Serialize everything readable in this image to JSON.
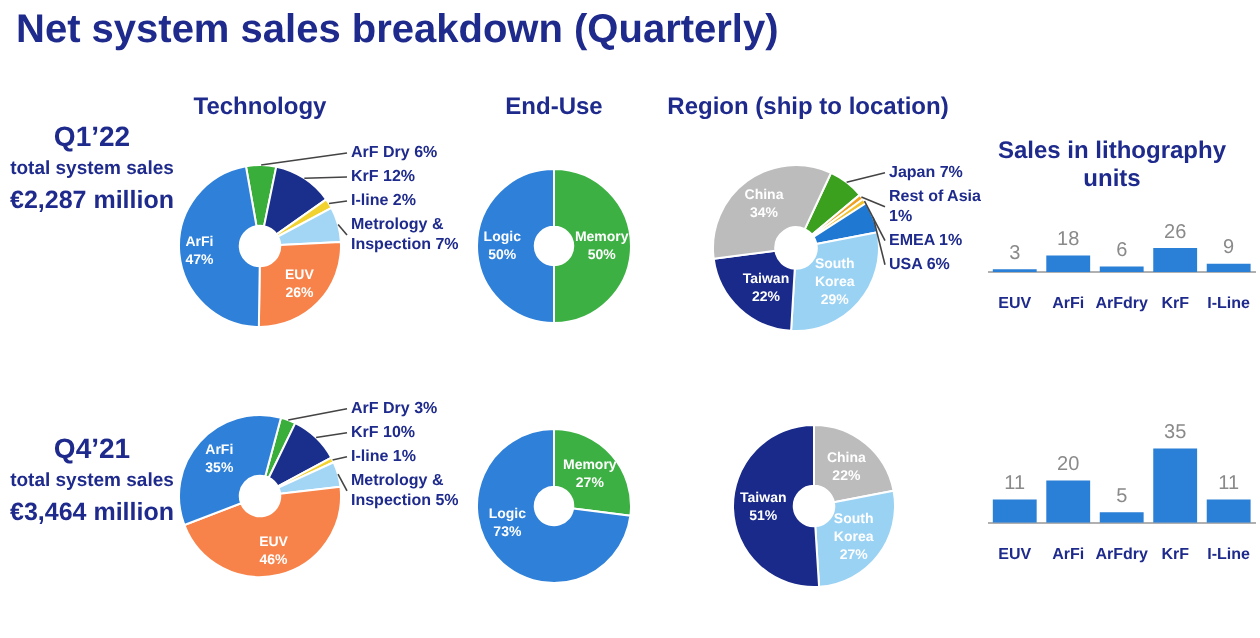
{
  "chart_data": [
    {
      "type": "other",
      "title": "Net system sales breakdown (Quarterly)"
    },
    {
      "type": "other",
      "title": "Q1’22",
      "annotations": [
        "total system sales",
        "€2,287 million"
      ]
    },
    {
      "type": "donut",
      "title": "Technology",
      "categories": [
        "ArF Dry",
        "KrF",
        "I-line",
        "Metrology & Inspection",
        "EUV",
        "ArFi"
      ],
      "values": [
        6,
        12,
        2,
        7,
        26,
        47
      ],
      "colors": [
        "#3aae3a",
        "#1a2e8c",
        "#f2d22e",
        "#a3d6f5",
        "#f8834a",
        "#2f80d8"
      ],
      "value_labels": [
        "6%",
        "12%",
        "2%",
        "7%",
        "26%",
        "47%"
      ]
    },
    {
      "type": "donut",
      "title": "End-Use",
      "categories": [
        "Memory",
        "Logic"
      ],
      "values": [
        50,
        50
      ],
      "colors": [
        "#3cb043",
        "#2f80d8"
      ],
      "value_labels": [
        "50%",
        "50%"
      ]
    },
    {
      "type": "donut",
      "title": "Region (ship to location)",
      "categories": [
        "Japan",
        "Rest of Asia",
        "EMEA",
        "USA",
        "South Korea",
        "Taiwan",
        "China"
      ],
      "values": [
        7,
        1,
        1,
        6,
        29,
        22,
        34
      ],
      "colors": [
        "#3aa01e",
        "#f0a020",
        "#f2c12e",
        "#1f78d1",
        "#9ad2f4",
        "#1a2a8a",
        "#bcbcbc"
      ],
      "value_labels": [
        "7%",
        "1%",
        "1%",
        "6%",
        "29%",
        "22%",
        "34%"
      ]
    },
    {
      "type": "bar",
      "title": "Sales in lithography units",
      "categories": [
        "EUV",
        "ArFi",
        "ArFdry",
        "KrF",
        "I-Line"
      ],
      "values": [
        3,
        18,
        6,
        26,
        9
      ],
      "color": "#2a7fd6",
      "data_labels": true
    },
    {
      "type": "other",
      "title": "Q4’21",
      "annotations": [
        "total system sales",
        "€3,464 million"
      ]
    },
    {
      "type": "donut",
      "categories": [
        "ArF Dry",
        "KrF",
        "I-line",
        "Metrology & Inspection",
        "EUV",
        "ArFi"
      ],
      "values": [
        3,
        10,
        1,
        5,
        46,
        35
      ],
      "colors": [
        "#3aae3a",
        "#1a2e8c",
        "#f2d22e",
        "#a3d6f5",
        "#f8834a",
        "#2f80d8"
      ],
      "value_labels": [
        "3%",
        "10%",
        "1%",
        "5%",
        "46%",
        "35%"
      ]
    },
    {
      "type": "donut",
      "categories": [
        "Memory",
        "Logic"
      ],
      "values": [
        27,
        73
      ],
      "colors": [
        "#3cb043",
        "#2f80d8"
      ],
      "value_labels": [
        "27%",
        "73%"
      ]
    },
    {
      "type": "donut",
      "categories": [
        "China",
        "South Korea",
        "Taiwan"
      ],
      "values": [
        22,
        27,
        51
      ],
      "colors": [
        "#bcbcbc",
        "#9ad2f4",
        "#1a2a8a"
      ],
      "value_labels": [
        "22%",
        "27%",
        "51%"
      ]
    },
    {
      "type": "bar",
      "categories": [
        "EUV",
        "ArFi",
        "ArFdry",
        "KrF",
        "I-Line"
      ],
      "values": [
        11,
        20,
        5,
        35,
        11
      ],
      "color": "#2a7fd6",
      "data_labels": true
    }
  ]
}
